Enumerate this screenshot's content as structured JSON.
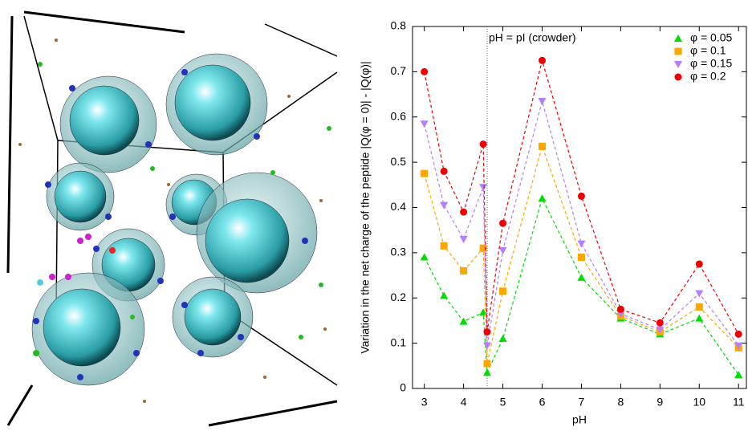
{
  "chart_data": {
    "type": "line",
    "x_label": "pH",
    "y_label": "Variation in the net charge of the peptide |Q(φ = 0)| - |Q(φ)|",
    "annotation": "pH = pI (crowder)",
    "vline": 4.6,
    "x": [
      3,
      3.5,
      4,
      4.5,
      4.6,
      5,
      6,
      7,
      8,
      9,
      10,
      11
    ],
    "series": [
      {
        "name": "φ = 0.05",
        "color": "#00dd00",
        "marker": "triangle-up",
        "values": [
          0.29,
          0.205,
          0.148,
          0.168,
          0.035,
          0.11,
          0.42,
          0.245,
          0.155,
          0.12,
          0.155,
          0.03
        ]
      },
      {
        "name": "φ = 0.1",
        "color": "#ffa500",
        "marker": "square",
        "values": [
          0.475,
          0.315,
          0.26,
          0.31,
          0.055,
          0.215,
          0.535,
          0.29,
          0.16,
          0.125,
          0.18,
          0.09
        ]
      },
      {
        "name": "φ = 0.15",
        "color": "#b57dff",
        "marker": "triangle-down",
        "values": [
          0.585,
          0.405,
          0.33,
          0.445,
          0.095,
          0.305,
          0.635,
          0.32,
          0.165,
          0.13,
          0.21,
          0.095
        ]
      },
      {
        "name": "φ = 0.2",
        "color": "#ee0000",
        "marker": "circle",
        "values": [
          0.7,
          0.48,
          0.39,
          0.54,
          0.125,
          0.365,
          0.725,
          0.425,
          0.175,
          0.145,
          0.275,
          0.12
        ]
      }
    ],
    "xlim": [
      2.7,
      11.2
    ],
    "ylim": [
      0,
      0.8
    ],
    "xticks": [
      3,
      4,
      5,
      6,
      7,
      8,
      9,
      10,
      11
    ],
    "yticks": [
      0,
      0.1,
      0.2,
      0.3,
      0.4,
      0.5,
      0.6,
      0.7,
      0.8
    ],
    "legend": "upper right"
  }
}
